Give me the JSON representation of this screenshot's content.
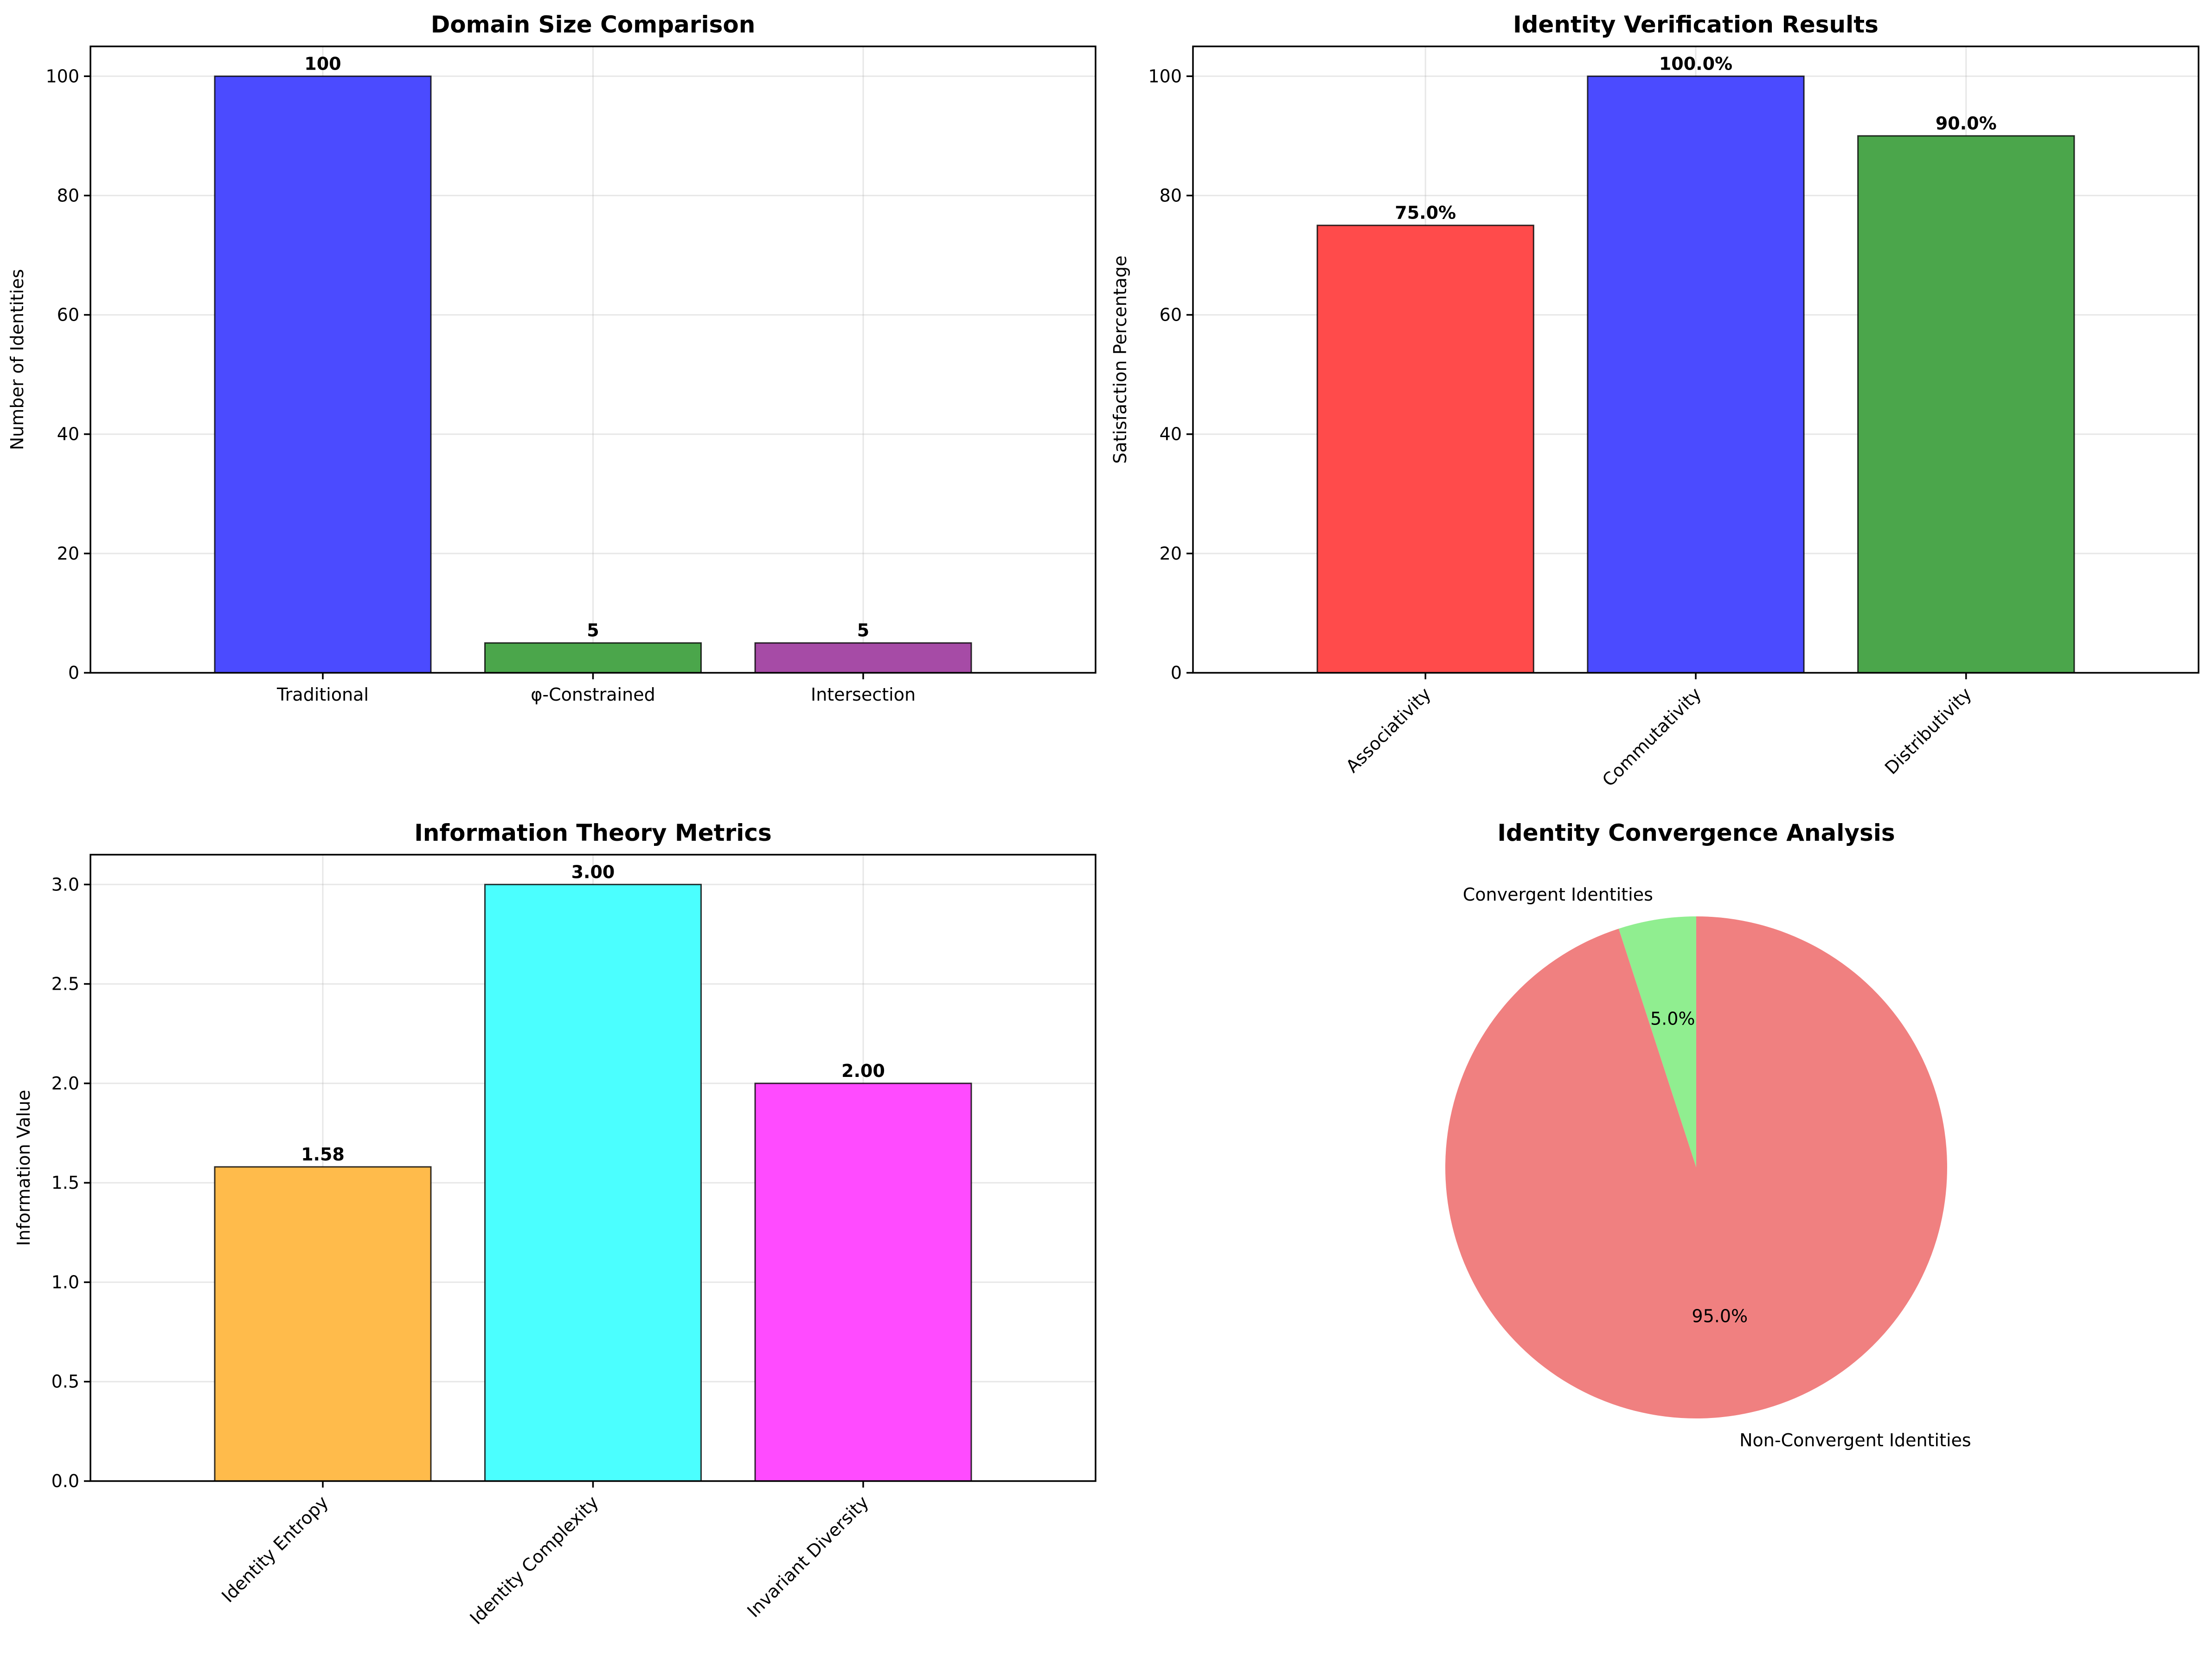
{
  "chart_data": [
    {
      "type": "bar",
      "title": "Domain Size Comparison",
      "xlabel": "",
      "ylabel": "Number of Identities",
      "categories": [
        "Traditional",
        "φ-Constrained",
        "Intersection"
      ],
      "values": [
        100,
        5,
        5
      ],
      "value_labels": [
        "100",
        "5",
        "5"
      ],
      "colors": [
        "#4b4bff",
        "#4ba64b",
        "#a64ba6"
      ],
      "ylim": [
        0,
        105
      ],
      "yticks": [
        0,
        20,
        40,
        60,
        80,
        100
      ],
      "ytick_labels": [
        "0",
        "20",
        "40",
        "60",
        "80",
        "100"
      ],
      "grid": true,
      "rotate_xticks": false
    },
    {
      "type": "bar",
      "title": "Identity Verification Results",
      "xlabel": "",
      "ylabel": "Satisfaction Percentage",
      "categories": [
        "Associativity",
        "Commutativity",
        "Distributivity"
      ],
      "values": [
        75.0,
        100.0,
        90.0
      ],
      "value_labels": [
        "75.0%",
        "100.0%",
        "90.0%"
      ],
      "colors": [
        "#ff4b4b",
        "#4b4bff",
        "#4ba64b"
      ],
      "ylim": [
        0,
        105
      ],
      "yticks": [
        0,
        20,
        40,
        60,
        80,
        100
      ],
      "ytick_labels": [
        "0",
        "20",
        "40",
        "60",
        "80",
        "100"
      ],
      "grid": true,
      "rotate_xticks": true
    },
    {
      "type": "bar",
      "title": "Information Theory Metrics",
      "xlabel": "",
      "ylabel": "Information Value",
      "categories": [
        "Identity Entropy",
        "Identity Complexity",
        "Invariant Diversity"
      ],
      "values": [
        1.58,
        3.0,
        2.0
      ],
      "value_labels": [
        "1.58",
        "3.00",
        "2.00"
      ],
      "colors": [
        "#ffbb4b",
        "#4bffff",
        "#ff4bff"
      ],
      "ylim": [
        0,
        3.15
      ],
      "yticks": [
        0.0,
        0.5,
        1.0,
        1.5,
        2.0,
        2.5,
        3.0
      ],
      "ytick_labels": [
        "0.0",
        "0.5",
        "1.0",
        "1.5",
        "2.0",
        "2.5",
        "3.0"
      ],
      "grid": true,
      "rotate_xticks": true
    },
    {
      "type": "pie",
      "title": "Identity Convergence Analysis",
      "labels": [
        "Convergent Identities",
        "Non-Convergent Identities"
      ],
      "values": [
        5.0,
        95.0
      ],
      "pct_labels": [
        "5.0%",
        "95.0%"
      ],
      "colors": [
        "#90ee90",
        "#f08080"
      ],
      "startangle": 90
    }
  ]
}
